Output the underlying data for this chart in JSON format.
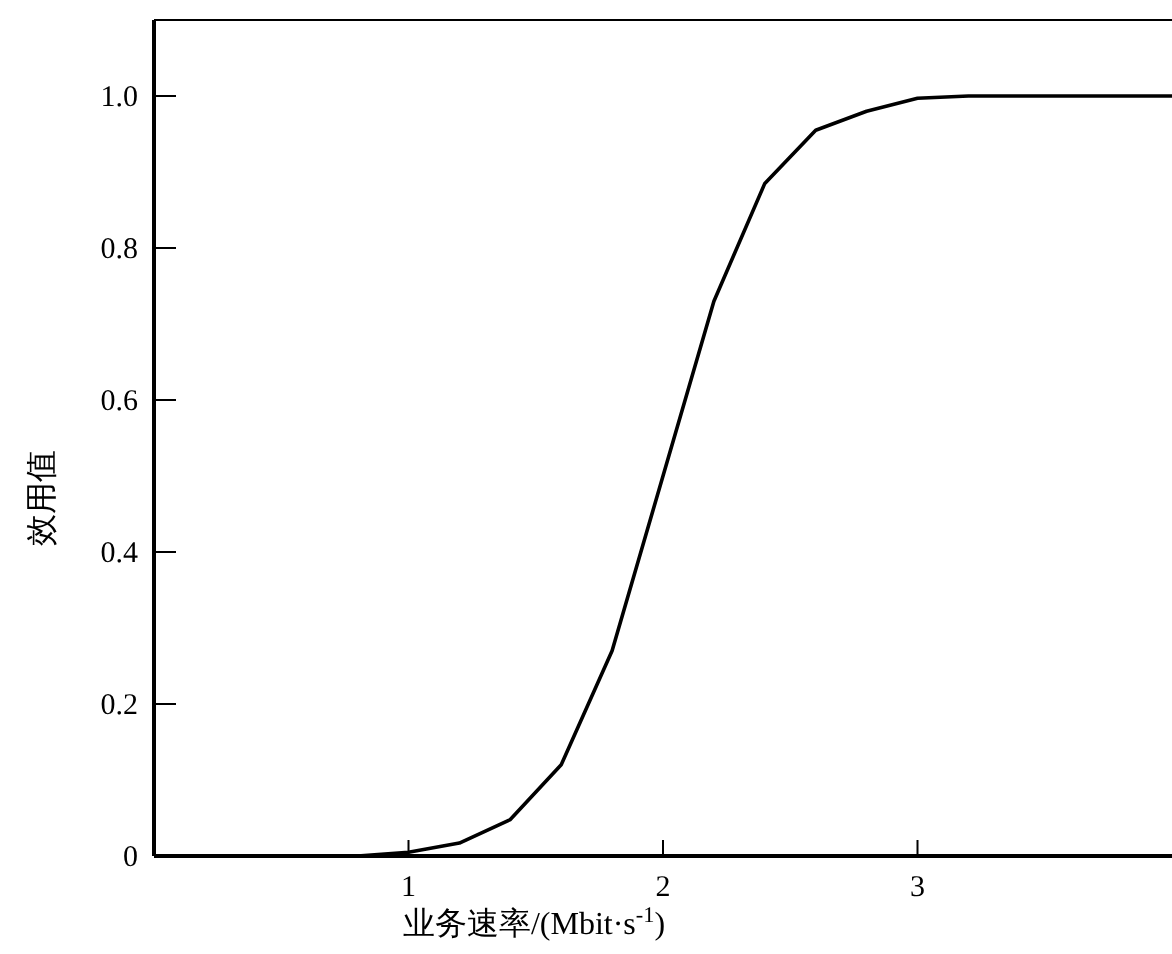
{
  "chart_data": {
    "type": "line",
    "xlabel": "业务速率/(Mbit·s$^{-1}$)",
    "ylabel": "效用值",
    "x": [
      0,
      0.2,
      0.4,
      0.6,
      0.8,
      1.0,
      1.2,
      1.4,
      1.6,
      1.8,
      2.0,
      2.2,
      2.4,
      2.6,
      2.8,
      3.0,
      3.2,
      3.4,
      3.6,
      3.8,
      4.0
    ],
    "values": [
      0,
      0,
      0,
      0,
      0,
      0.005,
      0.017,
      0.048,
      0.12,
      0.27,
      0.5,
      0.73,
      0.885,
      0.955,
      0.98,
      0.997,
      1.0,
      1.0,
      1.0,
      1.0,
      1.0
    ],
    "color": "#000000",
    "xlim": [
      0,
      4
    ],
    "ylim": [
      0,
      1.1
    ],
    "xticks": [
      1,
      2,
      3
    ],
    "yticks": [
      0,
      0.2,
      0.4,
      0.6,
      0.8,
      {
        "value": 1,
        "label": "1.0"
      }
    ]
  }
}
